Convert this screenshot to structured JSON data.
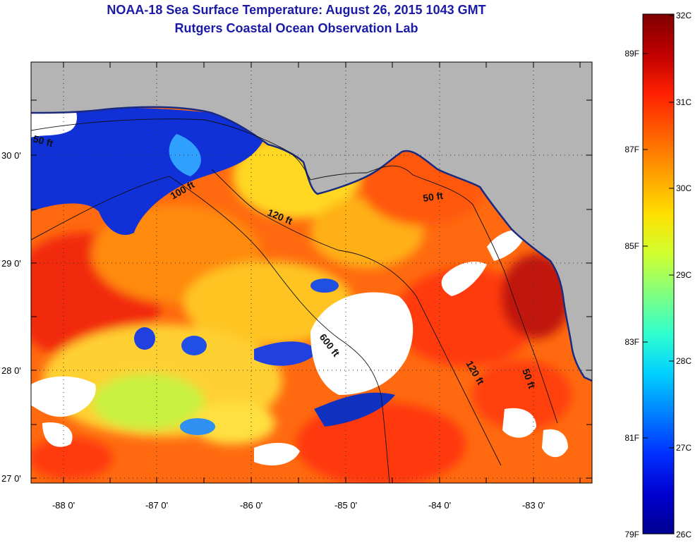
{
  "title_line1": "NOAA-18 Sea Surface Temperature:  August 26, 2015 1043 GMT",
  "title_line2": "Rutgers Coastal Ocean Observation Lab",
  "map": {
    "lat_labels": [
      "30 0'",
      "29 0'",
      "28 0'",
      "27 0'"
    ],
    "lon_labels": [
      "-88 0'",
      "-87 0'",
      "-86 0'",
      "-85 0'",
      "-84 0'",
      "-83 0'"
    ],
    "contour_labels": [
      "50 ft",
      "100 ft",
      "120 ft",
      "50 ft",
      "600 ft",
      "120 ft",
      "50 ft"
    ]
  },
  "colorbar": {
    "celsius": [
      "32C",
      "31C",
      "30C",
      "29C",
      "28C",
      "27C",
      "26C"
    ],
    "fahrenheit": [
      "89F",
      "87F",
      "85F",
      "83F",
      "81F",
      "79F"
    ],
    "colors": [
      "#7f0000",
      "#c00000",
      "#ff2000",
      "#ff6000",
      "#ffa000",
      "#ffe000",
      "#d0ff30",
      "#80ff80",
      "#30ffd0",
      "#00d0ff",
      "#0080ff",
      "#0030ff",
      "#0000d0",
      "#00008f"
    ]
  }
}
